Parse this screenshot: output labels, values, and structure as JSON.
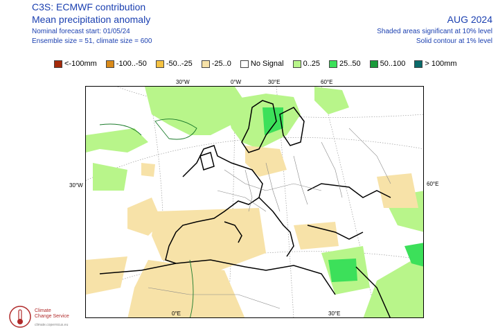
{
  "header": {
    "title": "C3S: ECMWF contribution",
    "subtitle": "Mean precipitation anomaly",
    "forecast_start": "Nominal forecast start: 01/05/24",
    "ensemble": "Ensemble size = 51, climate size = 600",
    "period": "AUG 2024",
    "significance_shaded": "Shaded areas significant at 10% level",
    "significance_contour": "Solid contour at 1% level"
  },
  "legend": [
    {
      "label": "<-100mm",
      "color": "#a52a0a"
    },
    {
      "label": "-100..-50",
      "color": "#d98a1a"
    },
    {
      "label": "-50..-25",
      "color": "#f5c242"
    },
    {
      "label": "-25..0",
      "color": "#f7e2a8"
    },
    {
      "label": "No Signal",
      "color": "#ffffff"
    },
    {
      "label": "0..25",
      "color": "#b8f58a"
    },
    {
      "label": "25..50",
      "color": "#3ce05a"
    },
    {
      "label": "50..100",
      "color": "#1a9a3a"
    },
    {
      "label": "> 100mm",
      "color": "#0a6a6a"
    }
  ],
  "map_labels": {
    "lon_30w": "30°W",
    "lon_0": "0°W",
    "lon_30e": "30°E",
    "lon_60e": "60°E",
    "lat_left": "30°W",
    "lat_right": "60°E",
    "bottom_0": "0°E",
    "bottom_30e": "30°E"
  },
  "logo": {
    "name_line1": "Climate",
    "name_line2": "Change Service",
    "url": "climate.copernicus.eu"
  },
  "colors": {
    "title_blue": "#1a3fb0",
    "dry": "#f7e2a8",
    "wet_light": "#b8f58a",
    "wet": "#3ce05a"
  }
}
